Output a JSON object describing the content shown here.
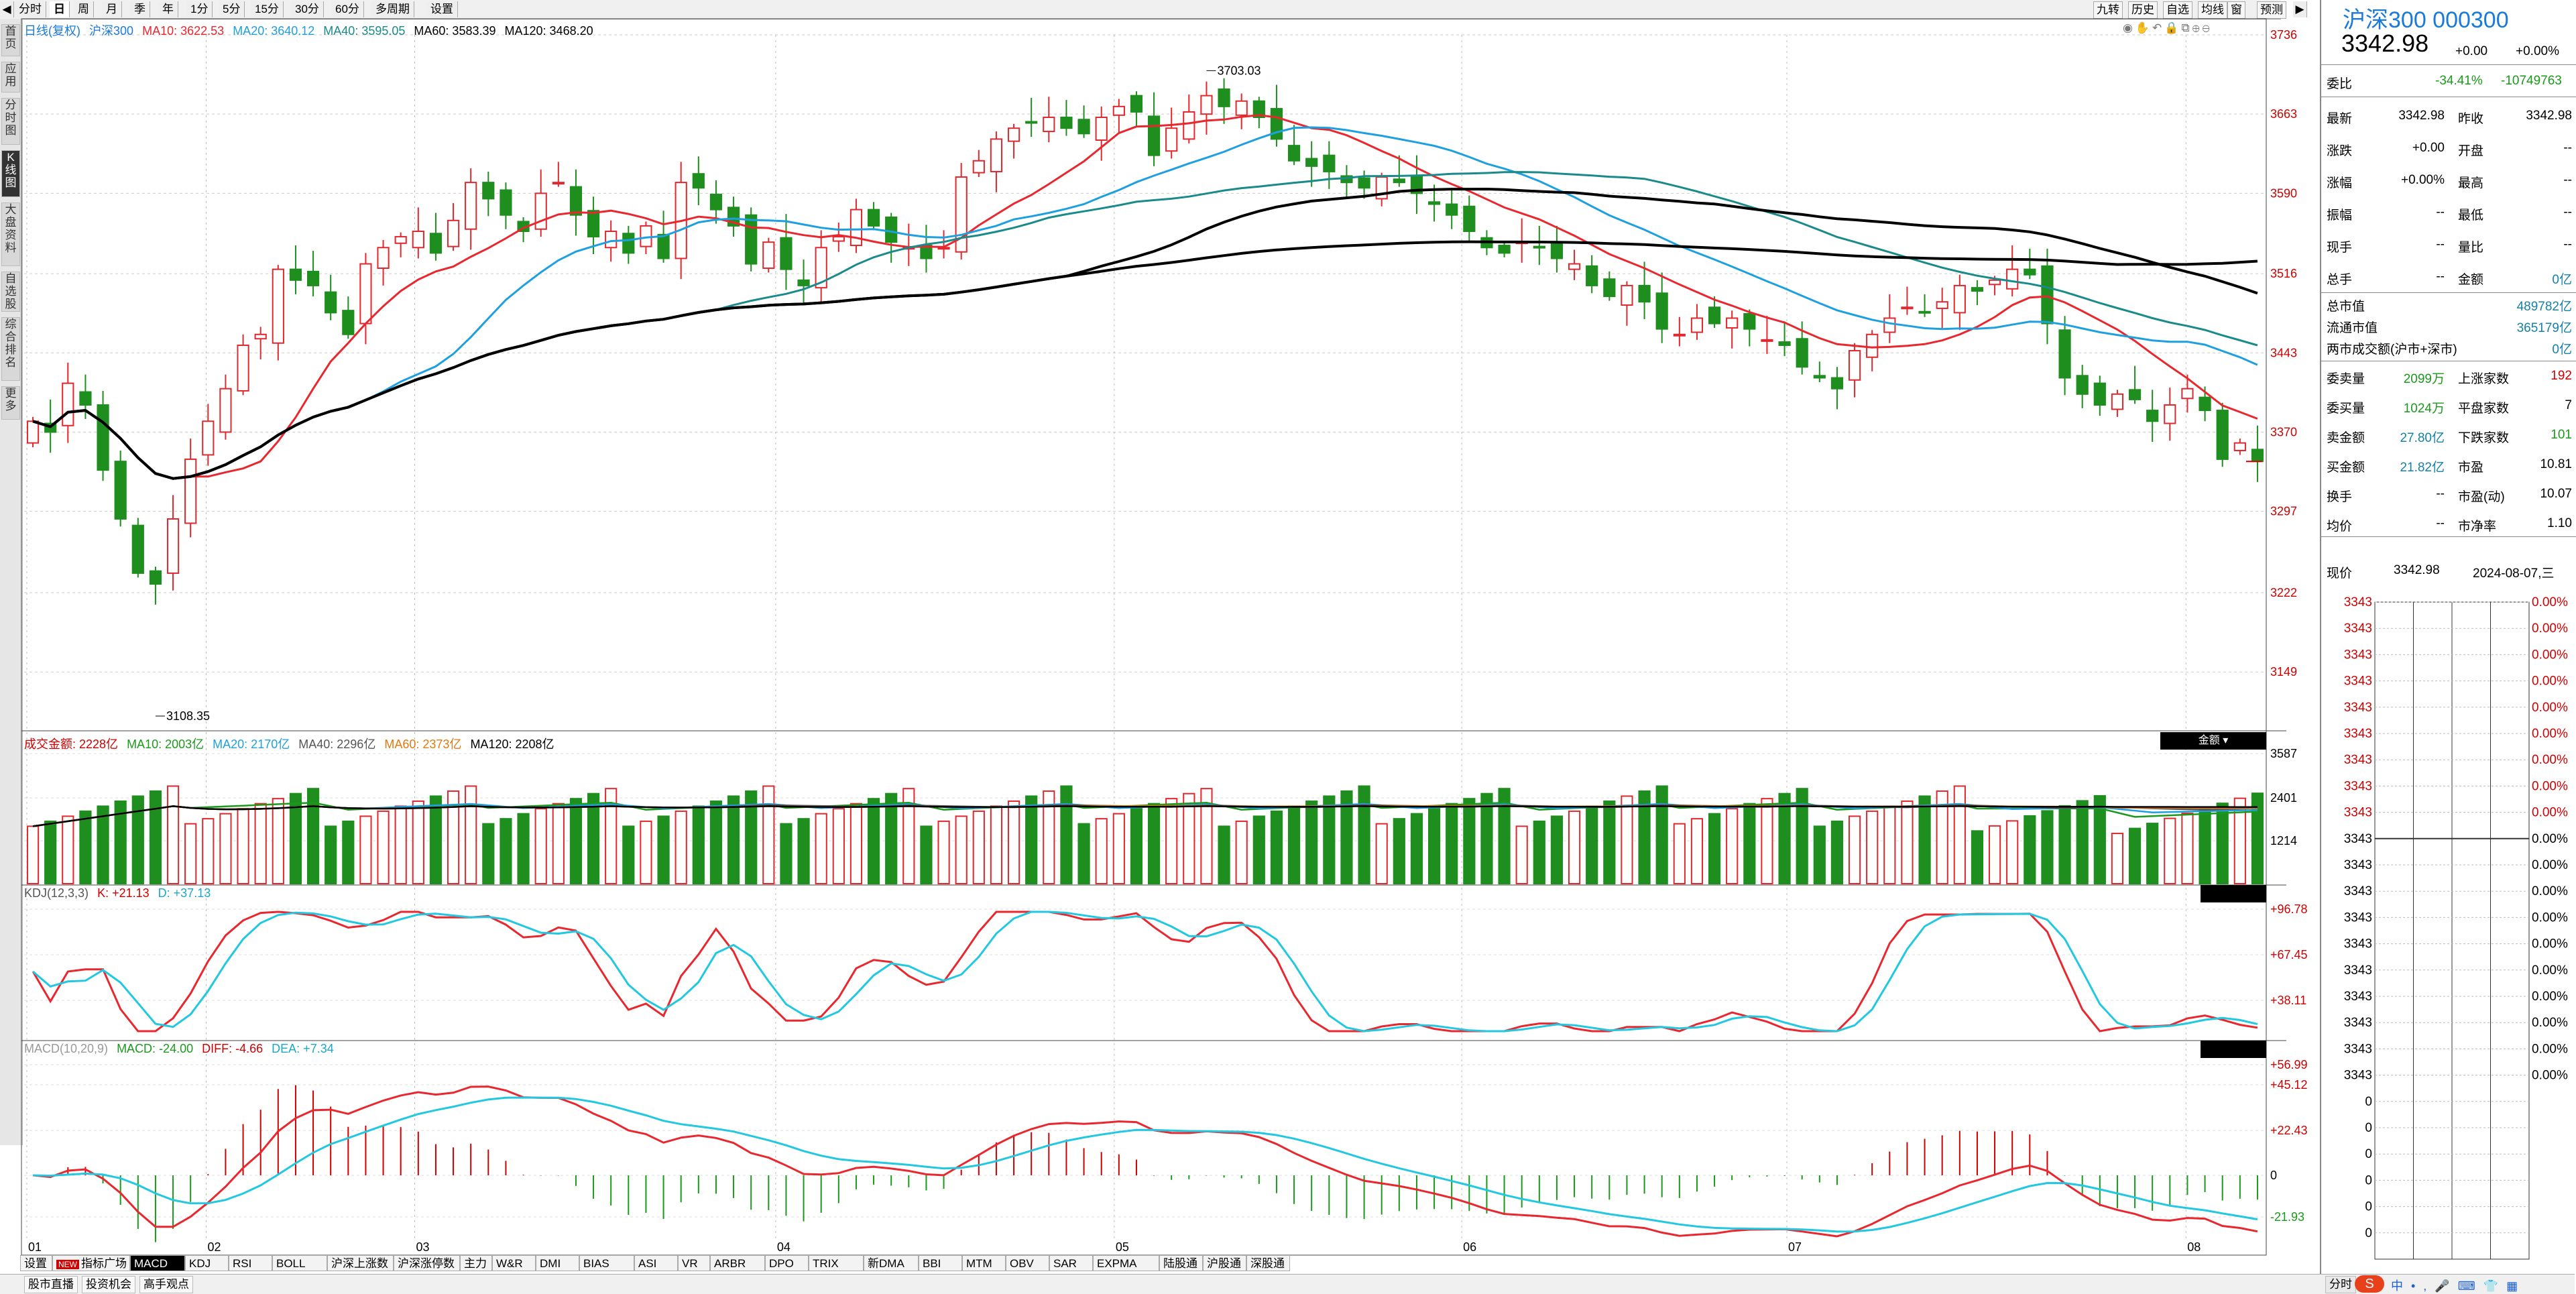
{
  "top_tabs": [
    "分时",
    "日",
    "周",
    "月",
    "季",
    "年",
    "1分",
    "5分",
    "15分",
    "30分",
    "60分",
    "多周期",
    "设置"
  ],
  "top_tabs_active": 1,
  "top_right_tabs": [
    "九转",
    "历史",
    "自选",
    "均线",
    "窗",
    "预测"
  ],
  "left_tabs": [
    "首页",
    "应用",
    "分时图",
    "K线图",
    "大盘资料",
    "自选股",
    "综合排名",
    "更多"
  ],
  "left_tabs_active": 3,
  "main_legend": {
    "prefix": "日线(复权)",
    "name": "沪深300",
    "ma10": "MA10: 3622.53",
    "ma20": "MA20: 3640.12",
    "ma40": "MA40: 3595.05",
    "ma60": "MA60: 3583.39",
    "ma120": "MA120: 3468.20"
  },
  "vol_legend": {
    "amount": "成交金额: 2228亿",
    "ma10": "MA10: 2003亿",
    "ma20": "MA20: 2170亿",
    "ma40": "MA40: 2296亿",
    "ma60": "MA60: 2373亿",
    "ma120": "MA120: 2208亿",
    "badge": "金额"
  },
  "kdj_legend": {
    "name": "KDJ(12,3,3)",
    "k": "K: +21.13",
    "d": "D: +37.13"
  },
  "macd_legend": {
    "name": "MACD(10,20,9)",
    "macd": "MACD: -24.00",
    "diff": "DIFF: -4.66",
    "dea": "DEA: +7.34"
  },
  "price_axis": [
    "3736",
    "3663",
    "3590",
    "3516",
    "3443",
    "3370",
    "3297",
    "3222",
    "3149"
  ],
  "vol_axis": [
    "3587",
    "2401",
    "1214"
  ],
  "kdj_axis": [
    "+96.78",
    "+67.45",
    "+38.11"
  ],
  "macd_axis": [
    "+56.99",
    "+45.12",
    "+22.43",
    "0",
    "-21.93"
  ],
  "x_axis": [
    "01",
    "02",
    "03",
    "04",
    "05",
    "06",
    "07",
    "08"
  ],
  "annotations": {
    "high": "3703.03",
    "low": "3108.35"
  },
  "colors": {
    "up": "#e0282e",
    "down": "#1e8e1e",
    "ma10": "#e8282e",
    "ma20": "#1ea0e0",
    "ma40": "#1a8a8a",
    "ma60": "#000000",
    "ma120": "#000000"
  },
  "chart_data": {
    "type": "candlestick",
    "title": "沪深300 日线(复权)",
    "x_range": [
      "2024-01-02",
      "2024-08-07"
    ],
    "y_range": [
      3108.35,
      3736
    ],
    "highest_close_label": 3703.03,
    "lowest_label": 3108.35,
    "last_close": 3342.98,
    "indicators": {
      "MA10": 3622.53,
      "MA20": 3640.12,
      "MA40": 3595.05,
      "MA60": 3583.39,
      "MA120": 3468.2,
      "K": 21.13,
      "D": 37.13,
      "MACD": -24.0,
      "DIFF": -4.66,
      "DEA": 7.34
    },
    "closes": [
      3380,
      3370,
      3415,
      3395,
      3335,
      3290,
      3240,
      3230,
      3290,
      3345,
      3380,
      3410,
      3450,
      3460,
      3520,
      3510,
      3505,
      3480,
      3460,
      3525,
      3540,
      3550,
      3555,
      3535,
      3565,
      3600,
      3585,
      3570,
      3555,
      3590,
      3600,
      3570,
      3550,
      3555,
      3535,
      3560,
      3530,
      3600,
      3595,
      3575,
      3560,
      3525,
      3545,
      3520,
      3505,
      3540,
      3550,
      3575,
      3560,
      3545,
      3540,
      3530,
      3540,
      3605,
      3620,
      3640,
      3650,
      3655,
      3660,
      3650,
      3645,
      3660,
      3670,
      3665,
      3625,
      3650,
      3665,
      3680,
      3670,
      3675,
      3660,
      3640,
      3620,
      3615,
      3610,
      3600,
      3595,
      3605,
      3600,
      3590,
      3580,
      3570,
      3555,
      3540,
      3535,
      3545,
      3540,
      3530,
      3525,
      3505,
      3495,
      3505,
      3490,
      3465,
      3460,
      3475,
      3470,
      3475,
      3465,
      3455,
      3450,
      3430,
      3420,
      3410,
      3445,
      3460,
      3475,
      3485,
      3480,
      3490,
      3505,
      3500,
      3510,
      3520,
      3515,
      3470,
      3420,
      3405,
      3395,
      3405,
      3400,
      3380,
      3395,
      3410,
      3390,
      3345,
      3360,
      3343
    ]
  },
  "right_panel": {
    "title": "沪深300 000300",
    "price": "3342.98",
    "chg": "+0.00",
    "chg_pct": "+0.00%",
    "webi_label": "委比",
    "webi_val": "-34.41%",
    "webi_num": "-10749763",
    "quote_rows": [
      {
        "l1": "最新",
        "v1": "3342.98",
        "l2": "昨收",
        "v2": "3342.98"
      },
      {
        "l1": "涨跌",
        "v1": "+0.00",
        "l2": "开盘",
        "v2": "--"
      },
      {
        "l1": "涨幅",
        "v1": "+0.00%",
        "l2": "最高",
        "v2": "--"
      },
      {
        "l1": "振幅",
        "v1": "--",
        "l2": "最低",
        "v2": "--"
      },
      {
        "l1": "现手",
        "v1": "--",
        "l2": "量比",
        "v2": "--"
      },
      {
        "l1": "总手",
        "v1": "--",
        "l2": "金额",
        "v2": "0亿"
      }
    ],
    "mktcap_rows": [
      {
        "l": "总市值",
        "v": "489782亿"
      },
      {
        "l": "流通市值",
        "v": "365179亿"
      },
      {
        "l": "两市成交额(沪市+深市)",
        "v": "0亿"
      }
    ],
    "breadth_rows": [
      {
        "l1": "委卖量",
        "v1": "2099万",
        "l2": "上涨家数",
        "v2": "192"
      },
      {
        "l1": "委买量",
        "v1": "1024万",
        "l2": "平盘家数",
        "v2": "7"
      },
      {
        "l1": "卖金额",
        "v1": "27.80亿",
        "l2": "下跌家数",
        "v2": "101"
      },
      {
        "l1": "买金额",
        "v1": "21.82亿",
        "l2": "市盈",
        "v2": "10.81"
      },
      {
        "l1": "换手",
        "v1": "--",
        "l2": "市盈(动)",
        "v2": "10.07"
      },
      {
        "l1": "均价",
        "v1": "--",
        "l2": "市净率",
        "v2": "1.10"
      }
    ],
    "now_label": "现价",
    "now_price": "3342.98",
    "now_date": "2024-08-07,三",
    "mini_left": "3343",
    "mini_right": "0.00%",
    "mini_zero": "0"
  },
  "bottom_tabs": [
    "设置",
    "指标广场",
    "MACD",
    "KDJ",
    "RSI",
    "BOLL",
    "沪深上涨数",
    "沪深涨停数",
    "主力",
    "W&R",
    "DMI",
    "BIAS",
    "ASI",
    "VR",
    "ARBR",
    "DPO",
    "TRIX",
    "新DMA",
    "BBI",
    "MTM",
    "OBV",
    "SAR",
    "EXPMA",
    "陆股通",
    "沪股通",
    "深股通"
  ],
  "bottom_tabs_active": 2,
  "new_badge": "NEW",
  "status_buttons": [
    "股市直播",
    "投资机会",
    "高手观点"
  ],
  "status_right": "分时"
}
